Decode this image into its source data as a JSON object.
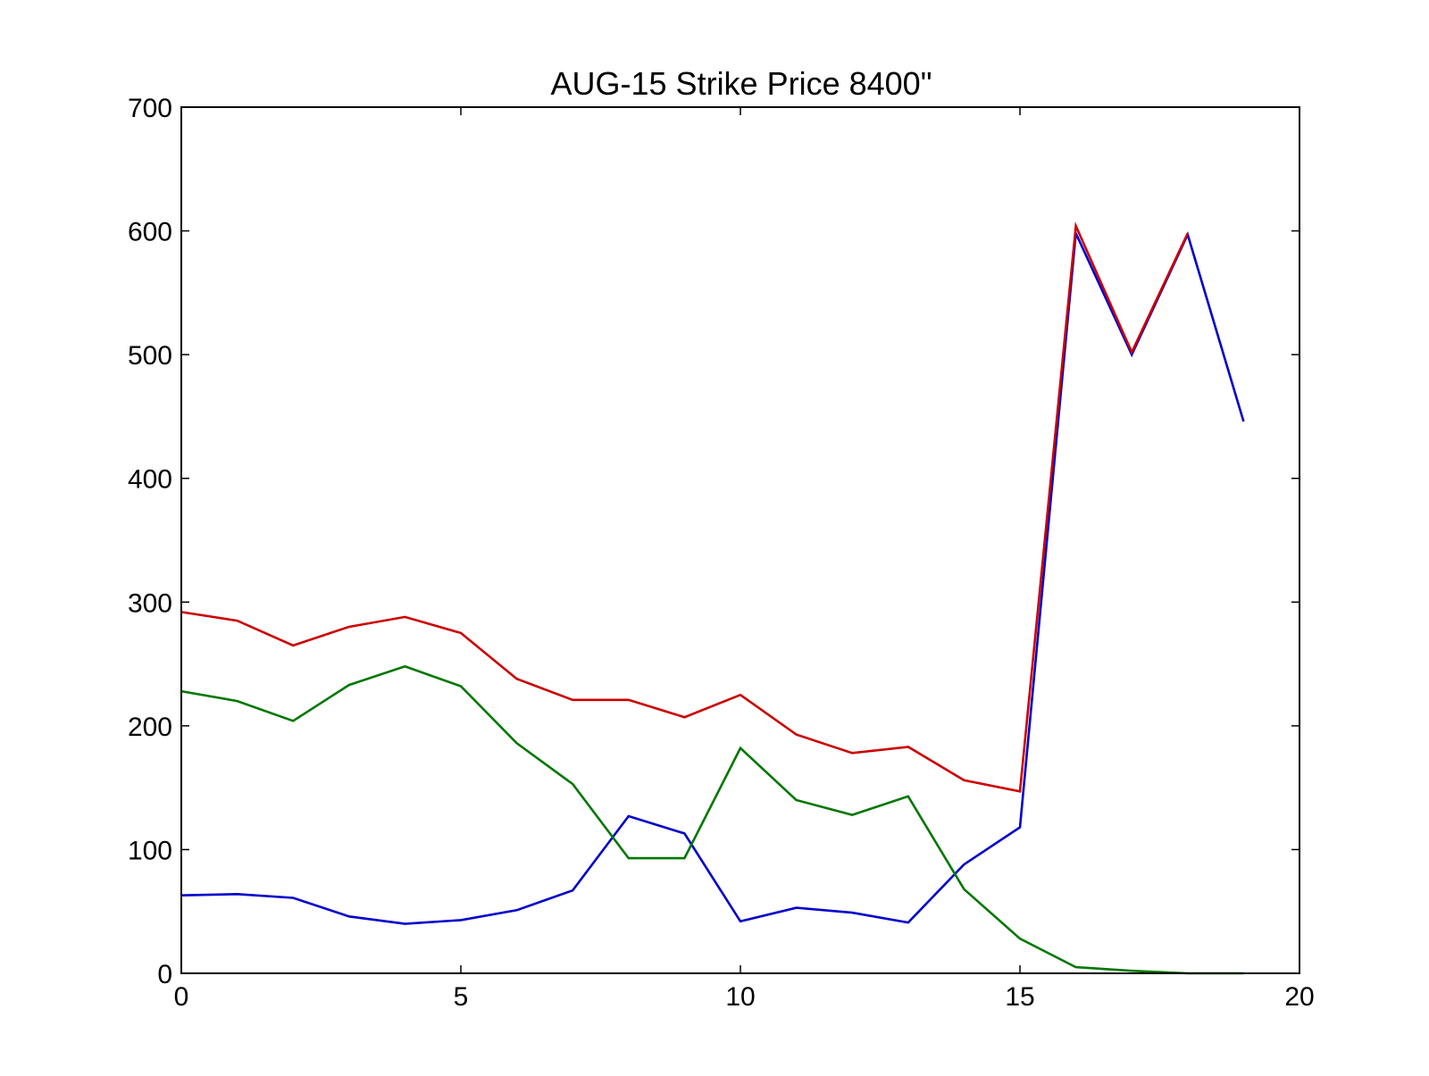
{
  "chart_data": {
    "type": "line",
    "title": "AUG-15 Strike Price 8400\"",
    "xlabel": "",
    "ylabel": "",
    "xlim": [
      0,
      20
    ],
    "ylim": [
      0,
      700
    ],
    "x_ticks": [
      0,
      5,
      10,
      15,
      20
    ],
    "y_ticks": [
      0,
      100,
      200,
      300,
      400,
      500,
      600,
      700
    ],
    "grid": false,
    "legend": "none",
    "x": [
      0,
      1,
      2,
      3,
      4,
      5,
      6,
      7,
      8,
      9,
      10,
      11,
      12,
      13,
      14,
      15,
      16,
      17,
      18,
      19
    ],
    "series": [
      {
        "color": "#0000cc",
        "values": [
          63,
          64,
          61,
          46,
          40,
          43,
          51,
          67,
          127,
          113,
          42,
          53,
          49,
          41,
          88,
          118,
          598,
          500,
          597,
          446
        ]
      },
      {
        "color": "#cc0000",
        "values": [
          292,
          285,
          265,
          280,
          288,
          275,
          238,
          221,
          221,
          207,
          225,
          193,
          178,
          183,
          156,
          147,
          604,
          502,
          598,
          null
        ]
      },
      {
        "color": "#007700",
        "values": [
          228,
          220,
          204,
          233,
          248,
          232,
          186,
          153,
          93,
          93,
          182,
          140,
          128,
          143,
          68,
          28,
          5,
          2,
          0,
          0
        ]
      }
    ]
  }
}
